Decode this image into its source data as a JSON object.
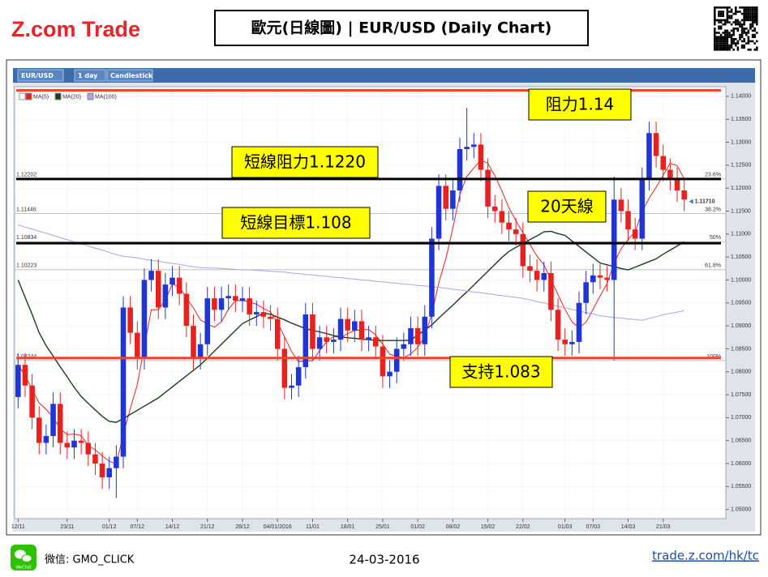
{
  "header": {
    "logo": "Z.com Trade",
    "title": "歐元(日線圖) | EUR/USD  (Daily Chart)"
  },
  "chart_data": {
    "type": "candlestick",
    "symbol": "EUR/USD",
    "interval": "1 day",
    "chart_style": "Candlestick",
    "up_color": "#1f35d6",
    "down_color": "#e8211f",
    "categories": [
      "12/11",
      null,
      null,
      null,
      null,
      null,
      null,
      "23/11",
      null,
      null,
      null,
      null,
      null,
      "01/12",
      null,
      null,
      null,
      "07/12",
      null,
      null,
      null,
      null,
      "14/12",
      null,
      null,
      null,
      null,
      "21/12",
      null,
      null,
      null,
      null,
      "28/12",
      null,
      null,
      null,
      null,
      "04/01/2016",
      null,
      null,
      null,
      null,
      "11/01",
      null,
      null,
      null,
      null,
      "18/01",
      null,
      null,
      null,
      null,
      "25/01",
      null,
      null,
      null,
      null,
      "01/02",
      null,
      null,
      null,
      null,
      "08/02",
      null,
      null,
      null,
      null,
      "15/02",
      null,
      null,
      null,
      null,
      "22/02",
      null,
      null,
      null,
      null,
      null,
      "01/03",
      null,
      null,
      null,
      "07/03",
      null,
      null,
      null,
      null,
      "14/03",
      null,
      null,
      null,
      null,
      "21/03",
      null,
      null,
      null
    ],
    "open": [
      1.0745,
      1.0815,
      1.077,
      1.07,
      1.0645,
      1.066,
      1.073,
      1.0645,
      1.0635,
      1.065,
      1.0645,
      1.062,
      1.06,
      1.057,
      1.059,
      1.0615,
      1.094,
      1.0885,
      1.083,
      1.1,
      1.102,
      1.094,
      1.099,
      1.1005,
      1.097,
      1.09,
      1.083,
      1.086,
      1.096,
      1.0935,
      1.096,
      1.0965,
      1.0955,
      1.096,
      1.0925,
      1.093,
      1.092,
      1.0915,
      1.085,
      1.0765,
      1.077,
      1.081,
      1.0925,
      1.085,
      1.0875,
      1.0865,
      1.087,
      1.0915,
      1.089,
      1.091,
      1.087,
      1.0875,
      1.0855,
      1.079,
      1.08,
      1.085,
      1.086,
      1.0895,
      1.086,
      1.092,
      1.109,
      1.1205,
      1.1155,
      1.1195,
      1.1285,
      1.129,
      1.1295,
      1.124,
      1.116,
      1.115,
      1.1125,
      1.111,
      1.11,
      1.103,
      1.102,
      1.1,
      1.1015,
      1.0935,
      1.087,
      1.086,
      1.0865,
      1.095,
      1.0995,
      1.101,
      1.1005,
      1.1,
      1.1175,
      1.115,
      1.111,
      1.109,
      1.122,
      1.132,
      1.127,
      1.124,
      1.122,
      1.1195
    ],
    "high": [
      1.084,
      1.084,
      1.0795,
      1.0725,
      1.0685,
      1.0755,
      1.0755,
      1.067,
      1.0675,
      1.0675,
      1.067,
      1.0645,
      1.0625,
      1.0615,
      1.064,
      1.0965,
      1.0965,
      1.091,
      1.1025,
      1.1045,
      1.1045,
      1.1015,
      1.103,
      1.103,
      1.0995,
      1.0925,
      1.0885,
      1.0985,
      1.0985,
      1.0985,
      1.099,
      1.099,
      1.0985,
      1.0985,
      1.0955,
      1.0955,
      1.0945,
      1.094,
      1.0875,
      1.0795,
      1.0835,
      1.095,
      1.095,
      1.09,
      1.09,
      1.0895,
      1.094,
      1.094,
      1.0935,
      1.0935,
      1.09,
      1.09,
      1.088,
      1.0825,
      1.0875,
      1.0885,
      1.092,
      1.092,
      1.0945,
      1.1115,
      1.123,
      1.123,
      1.122,
      1.131,
      1.1375,
      1.132,
      1.132,
      1.1265,
      1.1185,
      1.1175,
      1.115,
      1.1135,
      1.1125,
      1.1055,
      1.1045,
      1.104,
      1.104,
      1.096,
      1.0895,
      1.089,
      1.0975,
      1.102,
      1.1035,
      1.1035,
      1.103,
      1.1225,
      1.12,
      1.1175,
      1.1135,
      1.1245,
      1.1345,
      1.1345,
      1.1295,
      1.1265,
      1.1245,
      1.122
    ],
    "low": [
      1.072,
      1.0745,
      1.0675,
      1.062,
      1.062,
      1.0635,
      1.062,
      1.061,
      1.061,
      1.062,
      1.0595,
      1.0575,
      1.0545,
      1.0545,
      1.0525,
      1.059,
      1.086,
      1.0805,
      1.0805,
      1.0975,
      1.0915,
      1.0915,
      1.0965,
      1.0945,
      1.0875,
      1.0805,
      1.0805,
      1.0835,
      1.091,
      1.091,
      1.0935,
      1.093,
      1.093,
      1.09,
      1.09,
      1.0895,
      1.089,
      1.0825,
      1.074,
      1.074,
      1.0745,
      1.0785,
      1.0825,
      1.0825,
      1.084,
      1.084,
      1.0845,
      1.0865,
      1.0865,
      1.0845,
      1.0845,
      1.083,
      1.0765,
      1.0765,
      1.0775,
      1.0825,
      1.0835,
      1.0835,
      1.0835,
      1.0895,
      1.1065,
      1.113,
      1.113,
      1.117,
      1.126,
      1.1265,
      1.1215,
      1.1135,
      1.1125,
      1.11,
      1.1085,
      1.1075,
      1.1005,
      1.0995,
      1.0975,
      1.0975,
      1.091,
      1.0845,
      1.0835,
      1.0835,
      1.084,
      1.0925,
      1.097,
      1.098,
      1.0975,
      1.0825,
      1.1125,
      1.1085,
      1.1065,
      1.1065,
      1.1195,
      1.1245,
      1.1215,
      1.1195,
      1.117,
      1.115
    ],
    "close": [
      1.0815,
      1.077,
      1.07,
      1.0645,
      1.066,
      1.073,
      1.0645,
      1.0635,
      1.065,
      1.0645,
      1.062,
      1.06,
      1.057,
      1.059,
      1.0615,
      1.094,
      1.0885,
      1.083,
      1.1,
      1.102,
      1.094,
      1.099,
      1.1005,
      1.097,
      1.09,
      1.083,
      1.086,
      1.096,
      1.0935,
      1.096,
      1.0965,
      1.0955,
      1.096,
      1.0925,
      1.093,
      1.092,
      1.0915,
      1.085,
      1.0765,
      1.077,
      1.081,
      1.0925,
      1.085,
      1.0875,
      1.0865,
      1.087,
      1.0915,
      1.089,
      1.091,
      1.087,
      1.0875,
      1.0855,
      1.079,
      1.08,
      1.085,
      1.086,
      1.0895,
      1.086,
      1.092,
      1.109,
      1.1205,
      1.1155,
      1.1195,
      1.1285,
      1.129,
      1.1295,
      1.124,
      1.116,
      1.115,
      1.1125,
      1.111,
      1.11,
      1.103,
      1.102,
      1.1,
      1.1015,
      1.0935,
      1.087,
      1.086,
      1.0865,
      1.095,
      1.0995,
      1.101,
      1.1005,
      1.1,
      1.1175,
      1.115,
      1.111,
      1.109,
      1.122,
      1.132,
      1.127,
      1.124,
      1.122,
      1.1195,
      1.1175
    ],
    "series": [
      {
        "name": "MA(5)",
        "color": "#e8211f",
        "values": [
          1.0815,
          1.0792,
          1.0762,
          1.0732,
          1.0718,
          1.0701,
          1.0676,
          1.0663,
          1.0664,
          1.0661,
          1.0639,
          1.063,
          1.0617,
          1.0605,
          1.0599,
          1.0663,
          1.072,
          1.0772,
          1.0854,
          1.0935,
          1.0935,
          1.0956,
          1.0991,
          1.0985,
          1.0961,
          1.0939,
          1.0913,
          1.0904,
          1.0897,
          1.0909,
          1.0936,
          1.0955,
          1.0955,
          1.0953,
          1.0947,
          1.0938,
          1.093,
          1.0908,
          1.0876,
          1.0844,
          1.0822,
          1.0824,
          1.0824,
          1.0846,
          1.0865,
          1.0877,
          1.0875,
          1.0883,
          1.089,
          1.0891,
          1.0892,
          1.088,
          1.086,
          1.0838,
          1.0834,
          1.0831,
          1.0839,
          1.0853,
          1.0877,
          1.0925,
          1.0994,
          1.1046,
          1.1113,
          1.1186,
          1.1226,
          1.1244,
          1.1261,
          1.1254,
          1.1227,
          1.1194,
          1.1157,
          1.1129,
          1.1103,
          1.1077,
          1.1052,
          1.1033,
          1.1,
          1.0968,
          1.0936,
          1.0909,
          1.0896,
          1.0908,
          1.0936,
          1.0965,
          1.0992,
          1.1037,
          1.1068,
          1.1088,
          1.1105,
          1.1149,
          1.1178,
          1.1202,
          1.1228,
          1.1254,
          1.1249,
          1.122
        ]
      },
      {
        "name": "MA(20)",
        "color": "#1a3d1a",
        "values": [
          1.1,
          1.0962,
          1.0925,
          1.0885,
          1.0857,
          1.0834,
          1.0811,
          1.0789,
          1.0766,
          1.0746,
          1.0731,
          1.0717,
          1.0703,
          1.0692,
          1.069,
          1.0698,
          1.0707,
          1.0716,
          1.0725,
          1.0734,
          1.0743,
          1.0755,
          1.0767,
          1.0779,
          1.0791,
          1.0803,
          1.0815,
          1.083,
          1.0845,
          1.086,
          1.0875,
          1.089,
          1.0905,
          1.0913,
          1.092,
          1.0928,
          1.0925,
          1.0919,
          1.0913,
          1.0906,
          1.09,
          1.0894,
          1.089,
          1.0887,
          1.0883,
          1.0879,
          1.0876,
          1.0874,
          1.0873,
          1.0871,
          1.087,
          1.0868,
          1.0868,
          1.0868,
          1.0868,
          1.0868,
          1.0869,
          1.088,
          1.0891,
          1.0902,
          1.0917,
          1.0931,
          1.0945,
          1.096,
          1.0974,
          1.0989,
          1.1004,
          1.1019,
          1.1034,
          1.1049,
          1.1062,
          1.1071,
          1.1079,
          1.1088,
          1.1096,
          1.1105,
          1.1106,
          1.1101,
          1.1097,
          1.1085,
          1.1073,
          1.1061,
          1.1049,
          1.1037,
          1.1033,
          1.1029,
          1.1025,
          1.1022,
          1.1028,
          1.1034,
          1.104,
          1.1046,
          1.1056,
          1.1065,
          1.1074,
          1.1083
        ]
      },
      {
        "name": "MA(100)",
        "color": "#a9a4e6",
        "values": [
          1.112,
          1.1115,
          1.1111,
          1.1106,
          1.1102,
          1.1097,
          1.1092,
          1.1088,
          1.1083,
          1.1079,
          1.1074,
          1.1069,
          1.1065,
          1.106,
          1.1055,
          1.1052,
          1.105,
          1.1048,
          1.1045,
          1.1043,
          1.1041,
          1.1038,
          1.1036,
          1.1034,
          1.1031,
          1.1029,
          1.1027,
          1.1026,
          1.1026,
          1.1025,
          1.1024,
          1.1023,
          1.1022,
          1.1022,
          1.1021,
          1.102,
          1.1019,
          1.1018,
          1.1017,
          1.1015,
          1.1014,
          1.1012,
          1.1011,
          1.1009,
          1.1008,
          1.1006,
          1.1005,
          1.1003,
          1.1002,
          1.1,
          1.0999,
          1.0997,
          1.0996,
          1.0994,
          1.0993,
          1.0991,
          1.099,
          1.0988,
          1.0987,
          1.0985,
          1.0984,
          1.0982,
          1.098,
          1.0978,
          1.0976,
          1.0974,
          1.0972,
          1.097,
          1.0968,
          1.0966,
          1.0964,
          1.0962,
          1.096,
          1.0957,
          1.0953,
          1.095,
          1.0946,
          1.0943,
          1.0939,
          1.0936,
          1.0932,
          1.0929,
          1.0926,
          1.0922,
          1.092,
          1.0918,
          1.0917,
          1.0915,
          1.0914,
          1.0912,
          1.0916,
          1.092,
          1.0924,
          1.0927,
          1.093,
          1.0933
        ]
      }
    ],
    "ylim": [
      1.048,
      1.1421
    ],
    "yticks": [
      {
        "value": 1.05,
        "label": "1.05000"
      },
      {
        "value": 1.055,
        "label": "1.05500"
      },
      {
        "value": 1.06,
        "label": "1.06000"
      },
      {
        "value": 1.065,
        "label": "1.06500"
      },
      {
        "value": 1.07,
        "label": "1.07000"
      },
      {
        "value": 1.075,
        "label": "1.07500"
      },
      {
        "value": 1.08,
        "label": "1.08000"
      },
      {
        "value": 1.085,
        "label": "1.08500"
      },
      {
        "value": 1.09,
        "label": "1.09000"
      },
      {
        "value": 1.095,
        "label": "1.09500"
      },
      {
        "value": 1.1,
        "label": "1.10000"
      },
      {
        "value": 1.105,
        "label": "1.10500"
      },
      {
        "value": 1.11,
        "label": "1.11000"
      },
      {
        "value": 1.115,
        "label": "1.11500"
      },
      {
        "value": 1.12,
        "label": "1.12000"
      },
      {
        "value": 1.125,
        "label": "1.12500"
      },
      {
        "value": 1.13,
        "label": "1.13000"
      },
      {
        "value": 1.135,
        "label": "1.13500"
      },
      {
        "value": 1.14,
        "label": "1.14000"
      }
    ],
    "grid": true,
    "fibonacci": [
      {
        "value": 1.12202,
        "ratio": "23.6%"
      },
      {
        "value": 1.11446,
        "ratio": "38.2%"
      },
      {
        "value": 1.10834,
        "ratio": "50%"
      },
      {
        "value": 1.10223,
        "ratio": "61.8%"
      },
      {
        "value": 1.08244,
        "ratio": "100%"
      }
    ],
    "last_price": {
      "value": 1.1171,
      "label": "1.11710"
    },
    "levels": [
      {
        "value": 1.1413,
        "color": "#e8472e"
      },
      {
        "value": 1.122,
        "color": "#000000"
      },
      {
        "value": 1.108,
        "color": "#000000"
      },
      {
        "value": 1.083,
        "color": "#e8472e"
      }
    ],
    "annotations": [
      "阻力1.14",
      "短線阻力1.1220",
      "20天線",
      "短線目標1.108",
      "支持1.083"
    ]
  },
  "footer": {
    "wechat_icon": "WeChat",
    "wechat": "微信: GMO_CLICK",
    "date": "24-03-2016",
    "url": "trade.z.com/hk/tc"
  }
}
